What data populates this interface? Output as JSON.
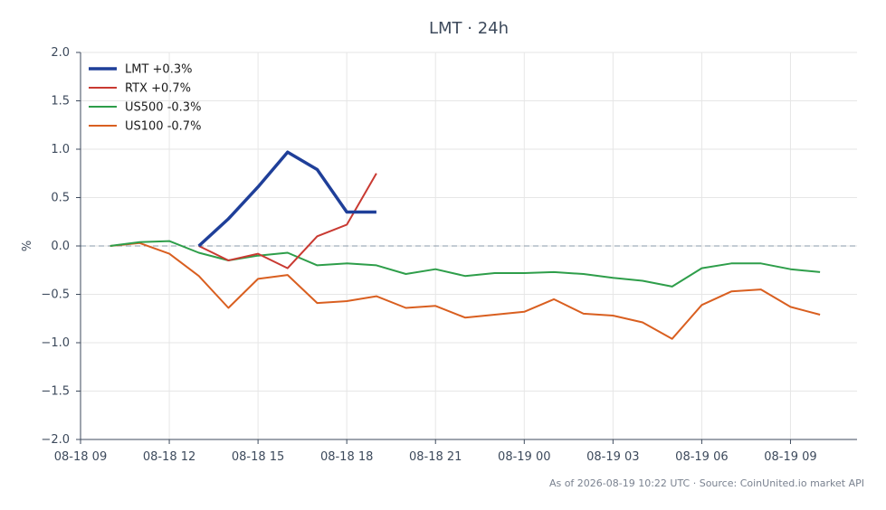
{
  "chart_data": {
    "type": "line",
    "title": "LMT · 24h",
    "ylabel": "%",
    "xlabel": "",
    "ylim": [
      -2.0,
      2.0
    ],
    "xlim": [
      "08-18 09:00",
      "08-19 11:15"
    ],
    "yticks": [
      "2.0",
      "1.5",
      "1.0",
      "0.5",
      "0.0",
      "−0.5",
      "−1.0",
      "−1.5",
      "−2.0"
    ],
    "xticks": [
      "08-18 09",
      "08-18 12",
      "08-18 15",
      "08-18 18",
      "08-18 21",
      "08-19 00",
      "08-19 03",
      "08-19 06",
      "08-19 09"
    ],
    "grid": true,
    "zero_line": true,
    "legend_position": "top-left",
    "series": [
      {
        "name": "LMT +0.3%",
        "color": "#1f3f99",
        "x": [
          "08-18 13:00",
          "08-18 14:00",
          "08-18 15:00",
          "08-18 16:00",
          "08-18 17:00",
          "08-18 18:00",
          "08-18 19:00"
        ],
        "values": [
          0.0,
          0.28,
          0.61,
          0.97,
          0.79,
          0.35,
          0.35
        ]
      },
      {
        "name": "RTX +0.7%",
        "color": "#c93a32",
        "x": [
          "08-18 13:00",
          "08-18 14:00",
          "08-18 15:00",
          "08-18 16:00",
          "08-18 17:00",
          "08-18 18:00",
          "08-18 19:00"
        ],
        "values": [
          0.0,
          -0.15,
          -0.08,
          -0.23,
          0.1,
          0.22,
          0.75
        ]
      },
      {
        "name": "US500 -0.3%",
        "color": "#2e9e4a",
        "x": [
          "08-18 10:00",
          "08-18 11:00",
          "08-18 12:00",
          "08-18 13:00",
          "08-18 14:00",
          "08-18 15:00",
          "08-18 16:00",
          "08-18 17:00",
          "08-18 18:00",
          "08-18 19:00",
          "08-18 20:00",
          "08-18 21:00",
          "08-18 22:00",
          "08-18 23:00",
          "08-19 00:00",
          "08-19 01:00",
          "08-19 02:00",
          "08-19 03:00",
          "08-19 04:00",
          "08-19 05:00",
          "08-19 06:00",
          "08-19 07:00",
          "08-19 08:00",
          "08-19 09:00",
          "08-19 10:00"
        ],
        "values": [
          0.0,
          0.04,
          0.05,
          -0.07,
          -0.15,
          -0.1,
          -0.07,
          -0.2,
          -0.18,
          -0.2,
          -0.29,
          -0.24,
          -0.31,
          -0.28,
          -0.28,
          -0.27,
          -0.29,
          -0.33,
          -0.36,
          -0.42,
          -0.23,
          -0.18,
          -0.18,
          -0.24,
          -0.27
        ]
      },
      {
        "name": "US100 -0.7%",
        "color": "#d95f20",
        "x": [
          "08-18 10:00",
          "08-18 11:00",
          "08-18 12:00",
          "08-18 13:00",
          "08-18 14:00",
          "08-18 15:00",
          "08-18 16:00",
          "08-18 17:00",
          "08-18 18:00",
          "08-18 19:00",
          "08-18 20:00",
          "08-18 21:00",
          "08-18 22:00",
          "08-18 23:00",
          "08-19 00:00",
          "08-19 01:00",
          "08-19 02:00",
          "08-19 03:00",
          "08-19 04:00",
          "08-19 05:00",
          "08-19 06:00",
          "08-19 07:00",
          "08-19 08:00",
          "08-19 09:00",
          "08-19 10:00"
        ],
        "values": [
          0.0,
          0.03,
          -0.08,
          -0.31,
          -0.64,
          -0.34,
          -0.3,
          -0.59,
          -0.57,
          -0.52,
          -0.64,
          -0.62,
          -0.74,
          -0.71,
          -0.68,
          -0.55,
          -0.7,
          -0.72,
          -0.79,
          -0.96,
          -0.61,
          -0.47,
          -0.45,
          -0.63,
          -0.71
        ]
      }
    ]
  },
  "footer": {
    "note": "As of 2026-08-19 10:22 UTC · Source: CoinUnited.io market API"
  }
}
